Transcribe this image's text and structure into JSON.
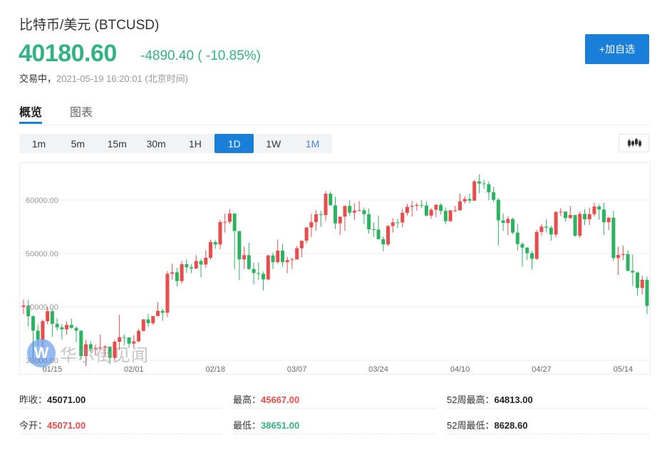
{
  "header": {
    "title": "比特币/美元  (BTCUSD)",
    "price": "40180.60",
    "change": "-4890.40 ( -10.85%)",
    "status": "交易中，",
    "datetime": "2021-05-19 16:20:01  (北京时间)",
    "add_watchlist": "+加自选"
  },
  "tabs": [
    {
      "label": "概览",
      "active": true
    },
    {
      "label": "图表",
      "active": false
    }
  ],
  "periods": [
    {
      "label": "1m"
    },
    {
      "label": "5m"
    },
    {
      "label": "15m"
    },
    {
      "label": "30m"
    },
    {
      "label": "1H"
    },
    {
      "label": "1D",
      "active": true
    },
    {
      "label": "1W"
    },
    {
      "label": "1M"
    }
  ],
  "chart_toggle_icon": "candlestick-icon",
  "colors": {
    "up": "#e94c4c",
    "down": "#2cb360",
    "accent": "#1a7fd9",
    "price_down": "#34b283"
  },
  "watermark": {
    "logo": "W",
    "text": "华尔街见闻"
  },
  "chart_data": {
    "type": "candlestick",
    "ylim": [
      28000,
      65000
    ],
    "yticks": [
      {
        "value": 30000,
        "label": "30000.00"
      },
      {
        "value": 40000,
        "label": "40000.00"
      },
      {
        "value": 50000,
        "label": "50000.00"
      },
      {
        "value": 60000,
        "label": "60000.00"
      }
    ],
    "xticks": [
      "01/15",
      "02/01",
      "02/18",
      "03/07",
      "03/24",
      "04/10",
      "04/27",
      "05/14"
    ],
    "grid": true,
    "columns": [
      "date",
      "open",
      "high",
      "low",
      "close"
    ],
    "candles": [
      [
        "01/09",
        40000,
        41400,
        38700,
        40250
      ],
      [
        "01/10",
        40250,
        41300,
        36300,
        38240
      ],
      [
        "01/11",
        38240,
        38400,
        30500,
        35550
      ],
      [
        "01/12",
        35550,
        36600,
        32700,
        33920
      ],
      [
        "01/13",
        33920,
        37600,
        32500,
        37320
      ],
      [
        "01/14",
        37320,
        40000,
        36800,
        39190
      ],
      [
        "01/15",
        39190,
        39700,
        34400,
        36830
      ],
      [
        "01/16",
        36830,
        37900,
        35600,
        36180
      ],
      [
        "01/17",
        36180,
        36800,
        33900,
        35790
      ],
      [
        "01/18",
        35790,
        37300,
        34800,
        36630
      ],
      [
        "01/19",
        36630,
        37800,
        35900,
        36070
      ],
      [
        "01/20",
        36070,
        36400,
        33400,
        35540
      ],
      [
        "01/21",
        35540,
        35600,
        30100,
        30800
      ],
      [
        "01/22",
        30800,
        33800,
        28900,
        33000
      ],
      [
        "01/23",
        33000,
        33600,
        31400,
        32100
      ],
      [
        "01/24",
        32100,
        32900,
        30900,
        32290
      ],
      [
        "01/25",
        32290,
        34800,
        31900,
        32370
      ],
      [
        "01/26",
        32370,
        32800,
        30800,
        32570
      ],
      [
        "01/27",
        32570,
        32600,
        29300,
        30440
      ],
      [
        "01/28",
        30440,
        33800,
        29800,
        33470
      ],
      [
        "01/29",
        33470,
        38500,
        31900,
        34320
      ],
      [
        "01/30",
        34320,
        34900,
        32800,
        34270
      ],
      [
        "01/31",
        34270,
        34300,
        32300,
        33110
      ],
      [
        "02/01",
        33110,
        34700,
        32300,
        33540
      ],
      [
        "02/02",
        33540,
        35900,
        33400,
        35510
      ],
      [
        "02/03",
        35510,
        37700,
        35400,
        37660
      ],
      [
        "02/04",
        37660,
        38700,
        36200,
        36950
      ],
      [
        "02/05",
        36950,
        38300,
        36600,
        38290
      ],
      [
        "02/06",
        38290,
        40900,
        38200,
        39260
      ],
      [
        "02/07",
        39260,
        39700,
        37400,
        38900
      ],
      [
        "02/08",
        38900,
        46700,
        38100,
        46200
      ],
      [
        "02/09",
        46200,
        48100,
        45100,
        46480
      ],
      [
        "02/10",
        46480,
        47300,
        43800,
        44840
      ],
      [
        "02/11",
        44840,
        48600,
        44400,
        47990
      ],
      [
        "02/12",
        47990,
        48900,
        46400,
        47410
      ],
      [
        "02/13",
        47410,
        48000,
        46300,
        47190
      ],
      [
        "02/14",
        47190,
        49700,
        47100,
        48580
      ],
      [
        "02/15",
        48580,
        49000,
        45500,
        47930
      ],
      [
        "02/16",
        47930,
        50600,
        47300,
        49200
      ],
      [
        "02/17",
        49200,
        52600,
        48900,
        52150
      ],
      [
        "02/18",
        52150,
        52500,
        50900,
        51680
      ],
      [
        "02/19",
        51680,
        56300,
        50800,
        55890
      ],
      [
        "02/20",
        55890,
        57500,
        53900,
        55920
      ],
      [
        "02/21",
        55920,
        58300,
        55500,
        57490
      ],
      [
        "02/22",
        57490,
        57500,
        47000,
        54200
      ],
      [
        "02/23",
        54200,
        54200,
        45000,
        48890
      ],
      [
        "02/24",
        48890,
        51300,
        47100,
        49690
      ],
      [
        "02/25",
        49690,
        52000,
        46900,
        47100
      ],
      [
        "02/26",
        47100,
        48300,
        44200,
        46340
      ],
      [
        "02/27",
        46340,
        48300,
        45000,
        46190
      ],
      [
        "02/28",
        46190,
        46600,
        43100,
        45140
      ],
      [
        "03/01",
        45140,
        49800,
        45000,
        49630
      ],
      [
        "03/02",
        49630,
        50200,
        47100,
        48380
      ],
      [
        "03/03",
        48380,
        52600,
        48100,
        50540
      ],
      [
        "03/04",
        50540,
        51800,
        47600,
        48370
      ],
      [
        "03/05",
        48370,
        49400,
        46300,
        48760
      ],
      [
        "03/06",
        48760,
        49200,
        47100,
        48880
      ],
      [
        "03/07",
        48880,
        51400,
        48900,
        50970
      ],
      [
        "03/08",
        50970,
        52400,
        49300,
        52380
      ],
      [
        "03/09",
        52380,
        54900,
        51900,
        54880
      ],
      [
        "03/10",
        54880,
        57400,
        53100,
        55880
      ],
      [
        "03/11",
        55880,
        58100,
        54300,
        57330
      ],
      [
        "03/12",
        57330,
        58000,
        55000,
        57200
      ],
      [
        "03/13",
        57200,
        61700,
        56100,
        61190
      ],
      [
        "03/14",
        61190,
        61600,
        59000,
        59000
      ],
      [
        "03/15",
        59000,
        60600,
        54600,
        55640
      ],
      [
        "03/16",
        55640,
        56900,
        53500,
        56900
      ],
      [
        "03/17",
        56900,
        58900,
        54200,
        58910
      ],
      [
        "03/18",
        58910,
        60000,
        57000,
        57650
      ],
      [
        "03/19",
        57650,
        59400,
        56300,
        58030
      ],
      [
        "03/20",
        58030,
        59800,
        57900,
        58100
      ],
      [
        "03/21",
        58100,
        58600,
        55500,
        57350
      ],
      [
        "03/22",
        57350,
        58400,
        53700,
        54530
      ],
      [
        "03/23",
        54530,
        55800,
        53100,
        54480
      ],
      [
        "03/24",
        54480,
        57100,
        52600,
        52690
      ],
      [
        "03/25",
        52690,
        53200,
        50400,
        51700
      ],
      [
        "03/26",
        51700,
        55300,
        51400,
        55140
      ],
      [
        "03/27",
        55140,
        56600,
        53900,
        55820
      ],
      [
        "03/28",
        55820,
        56500,
        54700,
        55800
      ],
      [
        "03/29",
        55800,
        58300,
        54900,
        57610
      ],
      [
        "03/30",
        57610,
        59300,
        57100,
        58740
      ],
      [
        "03/31",
        58740,
        59800,
        56900,
        58920
      ],
      [
        "04/01",
        58920,
        59500,
        58000,
        59100
      ],
      [
        "04/02",
        59100,
        60000,
        58500,
        59000
      ],
      [
        "04/03",
        59000,
        59800,
        56900,
        57090
      ],
      [
        "04/04",
        57090,
        58500,
        56500,
        58200
      ],
      [
        "04/05",
        58200,
        59200,
        56800,
        59120
      ],
      [
        "04/06",
        59120,
        59400,
        57300,
        57990
      ],
      [
        "04/07",
        57990,
        58600,
        55500,
        56050
      ],
      [
        "04/08",
        56050,
        58100,
        55900,
        58080
      ],
      [
        "04/09",
        58080,
        58900,
        57700,
        58090
      ],
      [
        "04/10",
        58090,
        61200,
        58000,
        59770
      ],
      [
        "04/11",
        59770,
        60700,
        59300,
        60200
      ],
      [
        "04/12",
        60200,
        61200,
        59400,
        59900
      ],
      [
        "04/13",
        59900,
        63800,
        59800,
        63500
      ],
      [
        "04/14",
        63500,
        64813,
        61300,
        63110
      ],
      [
        "04/15",
        63110,
        63800,
        62100,
        62980
      ],
      [
        "04/16",
        62980,
        63500,
        60000,
        61450
      ],
      [
        "04/17",
        61450,
        62500,
        59600,
        60050
      ],
      [
        "04/18",
        60050,
        60400,
        51500,
        56200
      ],
      [
        "04/19",
        56200,
        57500,
        54200,
        55720
      ],
      [
        "04/20",
        55720,
        57000,
        53400,
        56470
      ],
      [
        "04/21",
        56470,
        56700,
        53600,
        53910
      ],
      [
        "04/22",
        53910,
        55500,
        50500,
        51760
      ],
      [
        "04/23",
        51760,
        52100,
        47500,
        51090
      ],
      [
        "04/24",
        51090,
        51200,
        48800,
        50050
      ],
      [
        "04/25",
        50050,
        50500,
        47000,
        49000
      ],
      [
        "04/26",
        49000,
        54400,
        48800,
        54020
      ],
      [
        "04/27",
        54020,
        55500,
        53300,
        55030
      ],
      [
        "04/28",
        55030,
        56400,
        53900,
        54830
      ],
      [
        "04/29",
        54830,
        55200,
        52400,
        53550
      ],
      [
        "04/30",
        53550,
        58000,
        53100,
        57750
      ],
      [
        "05/01",
        57750,
        58500,
        57000,
        57830
      ],
      [
        "05/02",
        57830,
        57900,
        56000,
        56630
      ],
      [
        "05/03",
        56630,
        58900,
        56500,
        57200
      ],
      [
        "05/04",
        57200,
        57200,
        53100,
        53330
      ],
      [
        "05/05",
        53330,
        57900,
        52900,
        57420
      ],
      [
        "05/06",
        57420,
        58300,
        55300,
        56400
      ],
      [
        "05/07",
        56400,
        58600,
        55300,
        57360
      ],
      [
        "05/08",
        57360,
        59500,
        56900,
        58800
      ],
      [
        "05/09",
        58800,
        59200,
        56300,
        58230
      ],
      [
        "05/10",
        58230,
        59500,
        53500,
        55850
      ],
      [
        "05/11",
        55850,
        56800,
        54400,
        56700
      ],
      [
        "05/12",
        56700,
        58000,
        48600,
        49150
      ],
      [
        "05/13",
        49150,
        51300,
        46000,
        49720
      ],
      [
        "05/14",
        49720,
        51500,
        48800,
        49880
      ],
      [
        "05/15",
        49880,
        50600,
        46600,
        46760
      ],
      [
        "05/16",
        46760,
        49800,
        43900,
        46430
      ],
      [
        "05/17",
        46430,
        46600,
        42100,
        43540
      ],
      [
        "05/18",
        43540,
        45800,
        42300,
        45071
      ],
      [
        "05/19",
        45071,
        45667,
        38651,
        40180.6
      ]
    ]
  },
  "stats": [
    {
      "label": "昨收：",
      "value": "45071.00",
      "tone": "dark"
    },
    {
      "label": "最高：",
      "value": "45667.00",
      "tone": "red"
    },
    {
      "label": "52周最高：",
      "value": "64813.00",
      "tone": "dark"
    },
    {
      "label": "今开：",
      "value": "45071.00",
      "tone": "red"
    },
    {
      "label": "最低：",
      "value": "38651.00",
      "tone": "green"
    },
    {
      "label": "52周最低：",
      "value": "8628.60",
      "tone": "dark"
    }
  ]
}
